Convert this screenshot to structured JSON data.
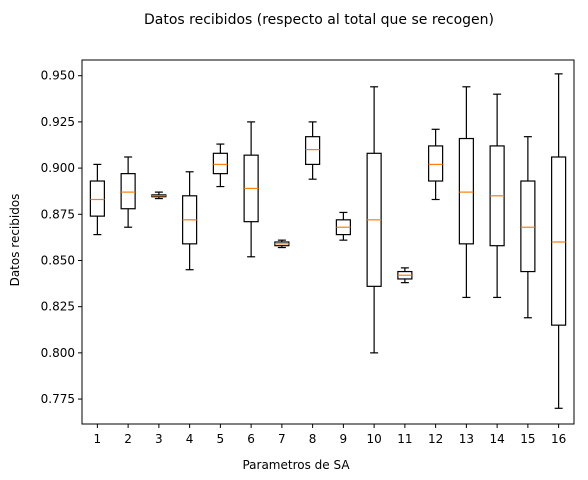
{
  "chart_data": {
    "type": "box",
    "title": "Datos recibidos (respecto al total que se recogen)",
    "xlabel": "Parametros de SA",
    "ylabel": "Datos recibidos",
    "ylim": [
      0.7615,
      0.9585
    ],
    "yticks": [
      0.775,
      0.8,
      0.825,
      0.85,
      0.875,
      0.9,
      0.925,
      0.95
    ],
    "ytick_labels": [
      "0.775",
      "0.800",
      "0.825",
      "0.850",
      "0.875",
      "0.900",
      "0.925",
      "0.950"
    ],
    "categories": [
      "1",
      "2",
      "3",
      "4",
      "5",
      "6",
      "7",
      "8",
      "9",
      "10",
      "11",
      "12",
      "13",
      "14",
      "15",
      "16"
    ],
    "boxes": [
      {
        "whislo": 0.864,
        "q1": 0.874,
        "med": 0.883,
        "q3": 0.893,
        "whishi": 0.902
      },
      {
        "whislo": 0.868,
        "q1": 0.878,
        "med": 0.887,
        "q3": 0.897,
        "whishi": 0.906
      },
      {
        "whislo": 0.8835,
        "q1": 0.8845,
        "med": 0.885,
        "q3": 0.8855,
        "whishi": 0.887
      },
      {
        "whislo": 0.845,
        "q1": 0.859,
        "med": 0.872,
        "q3": 0.885,
        "whishi": 0.898
      },
      {
        "whislo": 0.89,
        "q1": 0.897,
        "med": 0.902,
        "q3": 0.908,
        "whishi": 0.913
      },
      {
        "whislo": 0.852,
        "q1": 0.871,
        "med": 0.889,
        "q3": 0.907,
        "whishi": 0.925
      },
      {
        "whislo": 0.857,
        "q1": 0.858,
        "med": 0.859,
        "q3": 0.86,
        "whishi": 0.861
      },
      {
        "whislo": 0.894,
        "q1": 0.902,
        "med": 0.91,
        "q3": 0.917,
        "whishi": 0.925
      },
      {
        "whislo": 0.861,
        "q1": 0.864,
        "med": 0.868,
        "q3": 0.872,
        "whishi": 0.876
      },
      {
        "whislo": 0.8,
        "q1": 0.836,
        "med": 0.872,
        "q3": 0.908,
        "whishi": 0.944
      },
      {
        "whislo": 0.838,
        "q1": 0.84,
        "med": 0.842,
        "q3": 0.844,
        "whishi": 0.846
      },
      {
        "whislo": 0.883,
        "q1": 0.893,
        "med": 0.902,
        "q3": 0.912,
        "whishi": 0.921
      },
      {
        "whislo": 0.83,
        "q1": 0.859,
        "med": 0.887,
        "q3": 0.916,
        "whishi": 0.944
      },
      {
        "whislo": 0.83,
        "q1": 0.858,
        "med": 0.885,
        "q3": 0.912,
        "whishi": 0.94
      },
      {
        "whislo": 0.819,
        "q1": 0.844,
        "med": 0.868,
        "q3": 0.893,
        "whishi": 0.917
      },
      {
        "whislo": 0.77,
        "q1": 0.815,
        "med": 0.86,
        "q3": 0.906,
        "whishi": 0.951
      }
    ],
    "grid": false,
    "colors": {
      "box": "#000000",
      "median": "#ff7f0e",
      "background": "#ffffff"
    }
  }
}
